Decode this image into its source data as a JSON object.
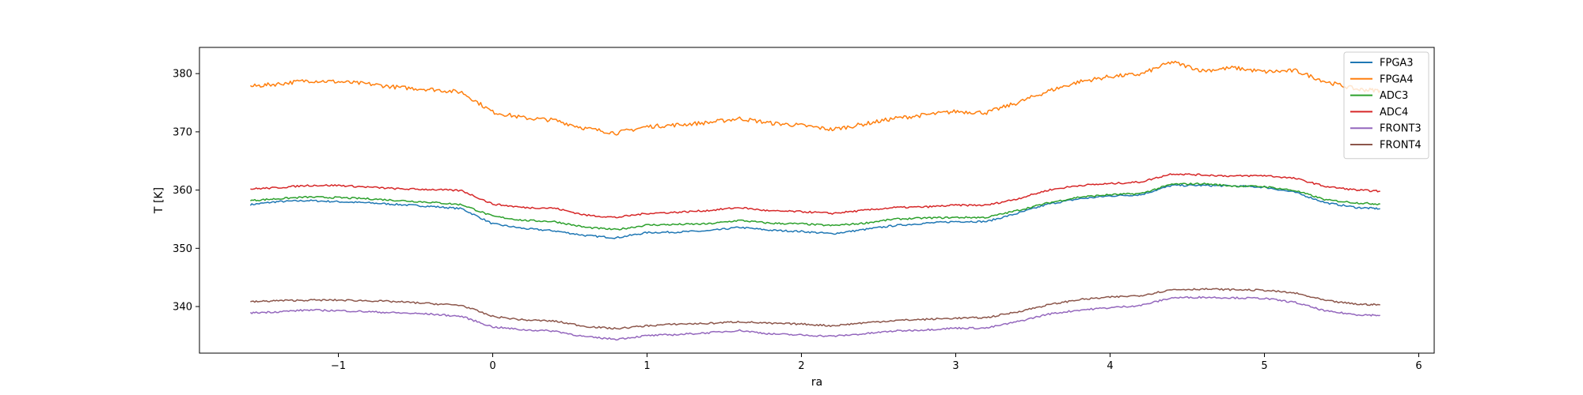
{
  "chart_data": {
    "type": "line",
    "title": "",
    "xlabel": "ra",
    "ylabel": "T [K]",
    "xlim": [
      -1.9,
      6.1
    ],
    "ylim": [
      332,
      384.5
    ],
    "xticks": [
      -1,
      0,
      1,
      2,
      3,
      4,
      5,
      6
    ],
    "xtick_labels": [
      "−1",
      "0",
      "1",
      "2",
      "3",
      "4",
      "5",
      "6"
    ],
    "yticks": [
      340,
      350,
      360,
      370,
      380
    ],
    "ytick_labels": [
      "340",
      "350",
      "360",
      "370",
      "380"
    ],
    "grid": false,
    "legend_position": "top-right",
    "x": [
      -1.57,
      -1.4,
      -1.2,
      -1.0,
      -0.8,
      -0.6,
      -0.4,
      -0.2,
      0.0,
      0.2,
      0.4,
      0.6,
      0.8,
      1.0,
      1.2,
      1.4,
      1.6,
      1.8,
      2.0,
      2.2,
      2.4,
      2.6,
      2.8,
      3.0,
      3.2,
      3.4,
      3.6,
      3.8,
      4.0,
      4.2,
      4.4,
      4.6,
      4.8,
      5.0,
      5.2,
      5.4,
      5.6,
      5.75
    ],
    "series": [
      {
        "name": "FPGA3",
        "color": "#1f77b4",
        "values": [
          357.5,
          358.0,
          358.2,
          358.0,
          357.8,
          357.5,
          357.2,
          356.8,
          354.2,
          353.4,
          353.0,
          352.2,
          351.8,
          352.7,
          352.8,
          353.0,
          353.6,
          353.1,
          352.9,
          352.5,
          353.2,
          353.9,
          354.3,
          354.6,
          354.6,
          356.0,
          357.6,
          358.5,
          359.0,
          359.2,
          360.8,
          360.8,
          360.7,
          360.5,
          359.6,
          357.8,
          357.0,
          356.8
        ]
      },
      {
        "name": "FPGA4",
        "color": "#ff7f0e",
        "values": [
          377.8,
          378.2,
          378.8,
          378.6,
          378.2,
          377.6,
          377.3,
          376.8,
          373.4,
          372.4,
          372.0,
          370.6,
          369.8,
          370.9,
          371.2,
          371.6,
          372.3,
          371.5,
          371.1,
          370.4,
          371.3,
          372.3,
          372.9,
          373.5,
          373.3,
          375.0,
          377.0,
          378.6,
          379.5,
          379.9,
          382.0,
          380.5,
          381.0,
          380.3,
          380.5,
          378.6,
          377.3,
          377.1
        ]
      },
      {
        "name": "ADC3",
        "color": "#2ca02c",
        "values": [
          358.2,
          358.5,
          358.8,
          358.7,
          358.5,
          358.2,
          357.9,
          357.5,
          355.5,
          354.8,
          354.6,
          353.6,
          353.2,
          354.0,
          354.1,
          354.2,
          354.8,
          354.3,
          354.2,
          353.9,
          354.3,
          355.0,
          355.2,
          355.3,
          355.3,
          356.5,
          357.8,
          358.8,
          359.2,
          359.4,
          361.0,
          361.1,
          360.7,
          360.6,
          359.9,
          358.3,
          357.8,
          357.6
        ]
      },
      {
        "name": "ADC4",
        "color": "#d62728",
        "values": [
          360.2,
          360.4,
          360.8,
          360.8,
          360.5,
          360.2,
          360.1,
          359.9,
          357.6,
          357.0,
          356.9,
          355.7,
          355.3,
          356.0,
          356.2,
          356.5,
          357.0,
          356.4,
          356.3,
          356.0,
          356.5,
          357.0,
          357.1,
          357.4,
          357.4,
          358.5,
          360.0,
          360.8,
          361.1,
          361.4,
          362.8,
          362.6,
          362.4,
          362.5,
          362.0,
          360.6,
          360.0,
          359.8
        ]
      },
      {
        "name": "FRONT3",
        "color": "#9467bd",
        "values": [
          338.9,
          339.1,
          339.4,
          339.3,
          339.1,
          338.9,
          338.7,
          338.3,
          336.5,
          336.0,
          335.8,
          334.8,
          334.4,
          335.0,
          335.2,
          335.5,
          335.9,
          335.3,
          335.1,
          334.9,
          335.3,
          335.8,
          336.0,
          336.3,
          336.3,
          337.4,
          338.7,
          339.4,
          339.8,
          340.2,
          341.5,
          341.6,
          341.5,
          341.4,
          340.7,
          339.2,
          338.6,
          338.5
        ]
      },
      {
        "name": "FRONT4",
        "color": "#8c564b",
        "values": [
          340.8,
          341.0,
          341.1,
          341.1,
          341.0,
          340.8,
          340.5,
          340.2,
          338.3,
          337.7,
          337.5,
          336.6,
          336.2,
          336.7,
          337.0,
          337.1,
          337.4,
          337.1,
          337.0,
          336.7,
          337.2,
          337.6,
          337.8,
          338.0,
          338.1,
          339.1,
          340.3,
          341.2,
          341.6,
          341.9,
          342.9,
          343.0,
          342.9,
          342.8,
          342.3,
          341.0,
          340.4,
          340.3
        ]
      }
    ]
  }
}
